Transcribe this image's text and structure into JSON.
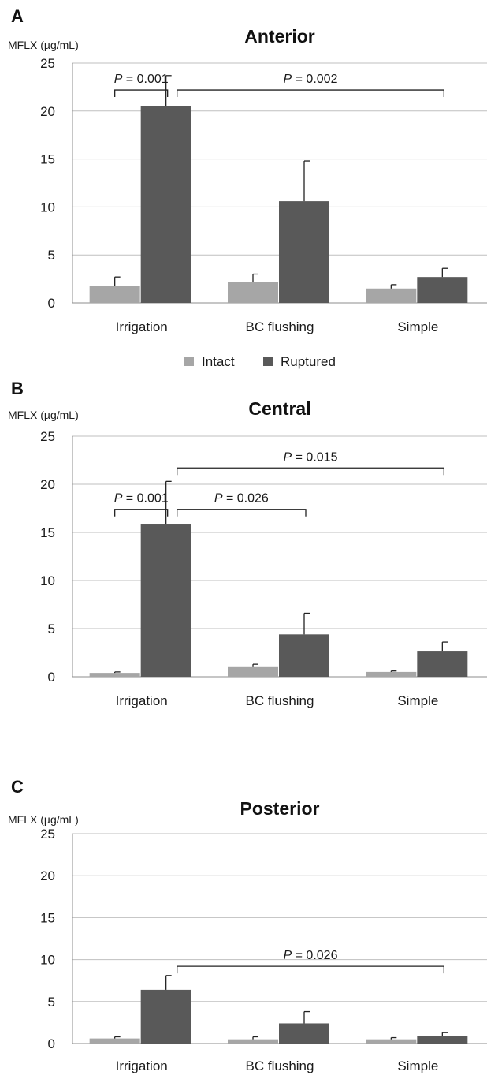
{
  "chart_data": [
    {
      "type": "bar",
      "panel": "A",
      "title": "Anterior",
      "ylabel": "MFLX (µg/mL)",
      "xlabel": "",
      "ylim": [
        0,
        25
      ],
      "yticks": [
        "0",
        "5",
        "10",
        "15",
        "20",
        "25"
      ],
      "grid": true,
      "categories": [
        "Irrigation",
        "BC flushing",
        "Simple"
      ],
      "series": [
        {
          "name": "Intact",
          "color": "#a6a6a6",
          "values": [
            1.8,
            2.2,
            1.5
          ],
          "errors": [
            0.9,
            0.8,
            0.4
          ]
        },
        {
          "name": "Ruptured",
          "color": "#595959",
          "values": [
            20.5,
            10.6,
            2.7
          ],
          "errors": [
            3.2,
            4.2,
            0.9
          ]
        }
      ],
      "annotations": [
        {
          "p_prefix": "P",
          "p_value": " = 0.001",
          "from": {
            "category": 0,
            "series": 0
          },
          "to": {
            "category": 0,
            "series": 1
          },
          "level": 22.2
        },
        {
          "p_prefix": "P",
          "p_value": " = 0.002",
          "from": {
            "category": 0,
            "series": 1
          },
          "to": {
            "category": 2,
            "series": 1
          },
          "level": 22.2
        }
      ],
      "legend": {
        "entries": [
          "Intact",
          "Ruptured"
        ],
        "position": "bottom"
      }
    },
    {
      "type": "bar",
      "panel": "B",
      "title": "Central",
      "ylabel": "MFLX (µg/mL)",
      "xlabel": "",
      "ylim": [
        0,
        25
      ],
      "yticks": [
        "0",
        "5",
        "10",
        "15",
        "20",
        "25"
      ],
      "grid": true,
      "categories": [
        "Irrigation",
        "BC flushing",
        "Simple"
      ],
      "series": [
        {
          "name": "Intact",
          "color": "#a6a6a6",
          "values": [
            0.4,
            1.0,
            0.5
          ],
          "errors": [
            0.1,
            0.3,
            0.1
          ]
        },
        {
          "name": "Ruptured",
          "color": "#595959",
          "values": [
            15.9,
            4.4,
            2.7
          ],
          "errors": [
            4.4,
            2.2,
            0.9
          ]
        }
      ],
      "annotations": [
        {
          "p_prefix": "P",
          "p_value": " = 0.015",
          "from": {
            "category": 0,
            "series": 1
          },
          "to": {
            "category": 2,
            "series": 1
          },
          "level": 21.7
        },
        {
          "p_prefix": "P",
          "p_value": " = 0.001",
          "from": {
            "category": 0,
            "series": 0
          },
          "to": {
            "category": 0,
            "series": 1
          },
          "level": 17.4
        },
        {
          "p_prefix": "P",
          "p_value": " = 0.026",
          "from": {
            "category": 0,
            "series": 1
          },
          "to": {
            "category": 1,
            "series": 1
          },
          "level": 17.4
        }
      ]
    },
    {
      "type": "bar",
      "panel": "C",
      "title": "Posterior",
      "ylabel": "MFLX (µg/mL)",
      "xlabel": "",
      "ylim": [
        0,
        25
      ],
      "yticks": [
        "0",
        "5",
        "10",
        "15",
        "20",
        "25"
      ],
      "grid": true,
      "categories": [
        "Irrigation",
        "BC flushing",
        "Simple"
      ],
      "series": [
        {
          "name": "Intact",
          "color": "#a6a6a6",
          "values": [
            0.6,
            0.5,
            0.5
          ],
          "errors": [
            0.2,
            0.3,
            0.2
          ]
        },
        {
          "name": "Ruptured",
          "color": "#595959",
          "values": [
            6.4,
            2.4,
            0.9
          ],
          "errors": [
            1.7,
            1.4,
            0.4
          ]
        }
      ],
      "annotations": [
        {
          "p_prefix": "P",
          "p_value": " = 0.026",
          "from": {
            "category": 0,
            "series": 1
          },
          "to": {
            "category": 2,
            "series": 1
          },
          "level": 9.2
        }
      ]
    }
  ]
}
